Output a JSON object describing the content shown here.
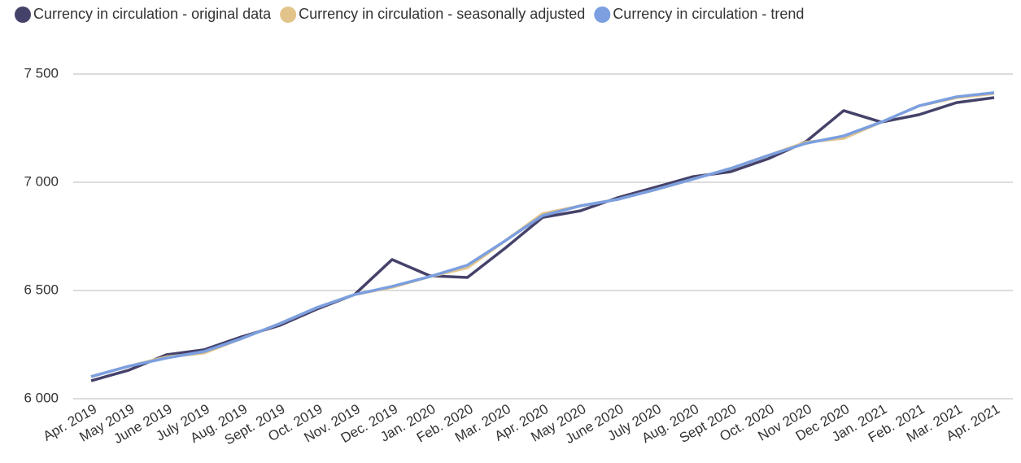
{
  "chart_data": {
    "type": "line",
    "categories": [
      "Apr. 2019",
      "May 2019",
      "June 2019",
      "July 2019",
      "Aug. 2019",
      "Sept. 2019",
      "Oct. 2019",
      "Nov. 2019",
      "Dec. 2019",
      "Jan. 2020",
      "Feb. 2020",
      "Mar. 2020",
      "Apr. 2020",
      "May 2020",
      "June 2020",
      "July 2020",
      "Aug. 2020",
      "Sept 2020",
      "Oct. 2020",
      "Nov 2020",
      "Dec 2020",
      "Jan. 2021",
      "Feb. 2021",
      "Mar. 2021",
      "Apr. 2021"
    ],
    "series": [
      {
        "name": "Currency in circulation - original data",
        "color": "#45426a",
        "values": [
          6083,
          6132,
          6203,
          6226,
          6286,
          6338,
          6414,
          6481,
          6643,
          6568,
          6560,
          6695,
          6838,
          6868,
          6929,
          6977,
          7026,
          7049,
          7109,
          7188,
          7331,
          7278,
          7312,
          7368,
          7391
        ]
      },
      {
        "name": "Currency in circulation - seasonally adjusted",
        "color": "#e2c48a",
        "values": [
          6102,
          6150,
          6193,
          6211,
          6278,
          6346,
          6421,
          6481,
          6515,
          6564,
          6605,
          6729,
          6855,
          6891,
          6921,
          6966,
          7015,
          7064,
          7124,
          7185,
          7203,
          7278,
          7353,
          7391,
          7410
        ]
      },
      {
        "name": "Currency in circulation - trend",
        "color": "#7b9fe0",
        "values": [
          6102,
          6150,
          6188,
          6218,
          6278,
          6346,
          6421,
          6481,
          6519,
          6564,
          6617,
          6729,
          6846,
          6891,
          6921,
          6966,
          7015,
          7064,
          7124,
          7180,
          7214,
          7278,
          7353,
          7395,
          7414
        ]
      }
    ],
    "ylim": [
      6000,
      7500
    ],
    "yticks": [
      {
        "value": 6000,
        "label": "6 000"
      },
      {
        "value": 6500,
        "label": "6 500"
      },
      {
        "value": 7000,
        "label": "7 000"
      },
      {
        "value": 7500,
        "label": "7 500"
      }
    ],
    "grid": true
  }
}
